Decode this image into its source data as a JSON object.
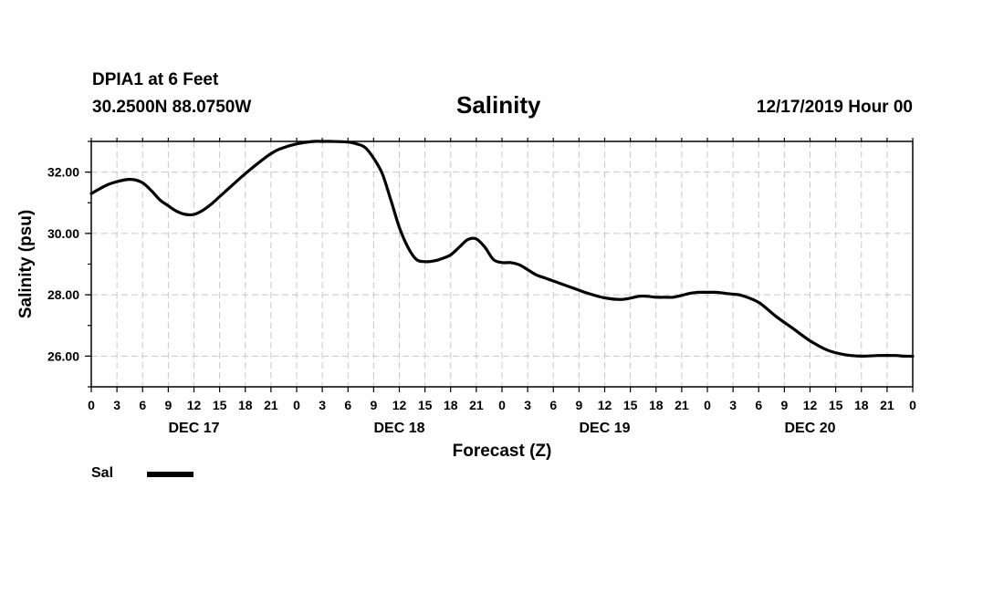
{
  "header": {
    "station": "DPIA1 at 6 Feet",
    "coordinates": "30.2500N 88.0750W",
    "datetime": "12/17/2019 Hour 00"
  },
  "legend": {
    "label": "Sal",
    "color": "#000000"
  },
  "chart_data": {
    "type": "line",
    "title": "Salinity",
    "xlabel": "Forecast (Z)",
    "ylabel": "Salinity (psu)",
    "xlim": [
      0,
      96
    ],
    "ylim": [
      25,
      33
    ],
    "yticks": [
      26,
      28,
      30,
      32
    ],
    "ytick_labels": [
      "26.00",
      "28.00",
      "30.00",
      "32.00"
    ],
    "xtick_labels": [
      "0",
      "3",
      "6",
      "9",
      "12",
      "15",
      "18",
      "21",
      "0",
      "3",
      "6",
      "9",
      "12",
      "15",
      "18",
      "21",
      "0",
      "3",
      "6",
      "9",
      "12",
      "15",
      "18",
      "21",
      "0",
      "3",
      "6",
      "9",
      "12",
      "15",
      "18",
      "21",
      "0"
    ],
    "day_labels": [
      {
        "label": "DEC 17",
        "hour": 12
      },
      {
        "label": "DEC 18",
        "hour": 36
      },
      {
        "label": "DEC 19",
        "hour": 60
      },
      {
        "label": "DEC 20",
        "hour": 84
      }
    ],
    "grid": true,
    "series": [
      {
        "name": "Sal",
        "color": "#000000",
        "x": [
          0,
          2,
          4,
          5,
          6,
          7,
          8,
          9,
          10,
          11,
          12,
          13,
          14,
          15,
          16,
          18,
          20,
          21,
          22,
          24,
          26,
          27,
          28,
          30,
          31,
          32,
          33,
          34,
          35,
          36,
          37,
          38,
          39,
          40,
          41,
          42,
          43,
          44,
          45,
          46,
          47,
          48,
          49,
          50,
          51,
          52,
          53,
          54,
          55,
          56,
          57,
          58,
          60,
          62,
          64,
          65,
          66,
          67,
          68,
          69,
          70,
          71,
          72,
          73,
          74,
          75,
          76,
          78,
          80,
          82,
          84,
          86,
          88,
          90,
          92,
          94,
          95,
          96
        ],
        "values": [
          31.3,
          31.6,
          31.75,
          31.75,
          31.65,
          31.4,
          31.1,
          30.9,
          30.72,
          30.62,
          30.62,
          30.75,
          30.95,
          31.2,
          31.45,
          31.95,
          32.4,
          32.6,
          32.75,
          32.92,
          33.0,
          33.0,
          33.0,
          32.98,
          32.92,
          32.8,
          32.45,
          31.95,
          31.1,
          30.2,
          29.55,
          29.15,
          29.08,
          29.1,
          29.18,
          29.3,
          29.55,
          29.8,
          29.82,
          29.55,
          29.15,
          29.05,
          29.05,
          28.98,
          28.82,
          28.65,
          28.55,
          28.45,
          28.35,
          28.25,
          28.15,
          28.05,
          27.9,
          27.85,
          27.95,
          27.95,
          27.92,
          27.92,
          27.92,
          27.98,
          28.05,
          28.08,
          28.08,
          28.08,
          28.05,
          28.02,
          27.98,
          27.75,
          27.3,
          26.9,
          26.5,
          26.2,
          26.05,
          26.0,
          26.02,
          26.02,
          26.0,
          26.0
        ]
      }
    ]
  }
}
